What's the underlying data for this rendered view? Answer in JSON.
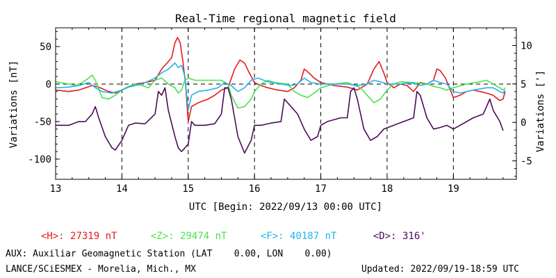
{
  "chart_data": {
    "type": "line",
    "title": "Real-Time regional magnetic field",
    "xlabel": "UTC [Begin: 2022/09/13 00:00 UTC]",
    "ylabel_left": "Variations [nT]",
    "ylabel_right": "Variations [']",
    "x_ticks": [
      "13",
      "14",
      "15",
      "16",
      "17",
      "18",
      "19"
    ],
    "y_left_ticks": [
      -100,
      -50,
      0,
      50
    ],
    "y_right_ticks": [
      -5,
      0,
      5,
      10
    ],
    "xlim": [
      0,
      6.95
    ],
    "ylim_left": [
      -127,
      75
    ],
    "ylim_right": [
      -7.4,
      12.3
    ],
    "day_boundaries": [
      1,
      2,
      3,
      4,
      5,
      6
    ],
    "zero_reference": "dashed line at 0 nT",
    "series": [
      {
        "name": "<H>",
        "color": "#e41a1c",
        "axis": "left",
        "points": [
          [
            0,
            -8
          ],
          [
            0.2,
            -10
          ],
          [
            0.35,
            -8
          ],
          [
            0.45,
            -5
          ],
          [
            0.55,
            -2
          ],
          [
            0.65,
            -4
          ],
          [
            0.8,
            -10
          ],
          [
            0.9,
            -12
          ],
          [
            1.0,
            -8
          ],
          [
            1.1,
            -4
          ],
          [
            1.2,
            0
          ],
          [
            1.35,
            2
          ],
          [
            1.5,
            5
          ],
          [
            1.6,
            20
          ],
          [
            1.7,
            30
          ],
          [
            1.75,
            35
          ],
          [
            1.8,
            55
          ],
          [
            1.84,
            62
          ],
          [
            1.88,
            55
          ],
          [
            1.92,
            30
          ],
          [
            1.96,
            0
          ],
          [
            2.0,
            -50
          ],
          [
            2.05,
            -30
          ],
          [
            2.15,
            -25
          ],
          [
            2.3,
            -20
          ],
          [
            2.4,
            -15
          ],
          [
            2.5,
            -8
          ],
          [
            2.6,
            -5
          ],
          [
            2.7,
            20
          ],
          [
            2.78,
            32
          ],
          [
            2.85,
            28
          ],
          [
            2.92,
            15
          ],
          [
            3.0,
            2
          ],
          [
            3.1,
            -2
          ],
          [
            3.2,
            -5
          ],
          [
            3.35,
            -8
          ],
          [
            3.5,
            -10
          ],
          [
            3.6,
            -5
          ],
          [
            3.7,
            5
          ],
          [
            3.75,
            20
          ],
          [
            3.82,
            15
          ],
          [
            3.9,
            8
          ],
          [
            4.0,
            2
          ],
          [
            4.2,
            -2
          ],
          [
            4.4,
            -4
          ],
          [
            4.55,
            -8
          ],
          [
            4.7,
            0
          ],
          [
            4.8,
            20
          ],
          [
            4.88,
            30
          ],
          [
            4.95,
            15
          ],
          [
            5.0,
            2
          ],
          [
            5.1,
            -5
          ],
          [
            5.2,
            0
          ],
          [
            5.3,
            -2
          ],
          [
            5.4,
            -10
          ],
          [
            5.5,
            2
          ],
          [
            5.6,
            0
          ],
          [
            5.7,
            5
          ],
          [
            5.75,
            20
          ],
          [
            5.8,
            18
          ],
          [
            5.88,
            8
          ],
          [
            6.0,
            -18
          ],
          [
            6.1,
            -15
          ],
          [
            6.2,
            -10
          ],
          [
            6.3,
            -8
          ],
          [
            6.4,
            -10
          ],
          [
            6.5,
            -12
          ],
          [
            6.6,
            -15
          ],
          [
            6.7,
            -22
          ],
          [
            6.75,
            -20
          ],
          [
            6.78,
            -10
          ]
        ]
      },
      {
        "name": "<Z>",
        "color": "#4be24b",
        "axis": "left",
        "points": [
          [
            0,
            3
          ],
          [
            0.2,
            0
          ],
          [
            0.3,
            -2
          ],
          [
            0.4,
            2
          ],
          [
            0.5,
            8
          ],
          [
            0.55,
            12
          ],
          [
            0.6,
            5
          ],
          [
            0.7,
            -18
          ],
          [
            0.8,
            -20
          ],
          [
            0.9,
            -15
          ],
          [
            1.0,
            -8
          ],
          [
            1.1,
            -3
          ],
          [
            1.2,
            0
          ],
          [
            1.3,
            -2
          ],
          [
            1.4,
            -5
          ],
          [
            1.5,
            5
          ],
          [
            1.6,
            8
          ],
          [
            1.7,
            0
          ],
          [
            1.8,
            -5
          ],
          [
            1.85,
            -12
          ],
          [
            1.9,
            -8
          ],
          [
            1.95,
            5
          ],
          [
            2.0,
            8
          ],
          [
            2.1,
            5
          ],
          [
            2.3,
            5
          ],
          [
            2.5,
            5
          ],
          [
            2.6,
            0
          ],
          [
            2.65,
            -15
          ],
          [
            2.75,
            -32
          ],
          [
            2.85,
            -30
          ],
          [
            2.95,
            -20
          ],
          [
            3.0,
            -10
          ],
          [
            3.1,
            0
          ],
          [
            3.2,
            5
          ],
          [
            3.3,
            2
          ],
          [
            3.5,
            0
          ],
          [
            3.6,
            -10
          ],
          [
            3.7,
            -15
          ],
          [
            3.8,
            -18
          ],
          [
            3.9,
            -12
          ],
          [
            4.0,
            -5
          ],
          [
            4.2,
            0
          ],
          [
            4.4,
            2
          ],
          [
            4.6,
            -5
          ],
          [
            4.7,
            -15
          ],
          [
            4.8,
            -25
          ],
          [
            4.9,
            -20
          ],
          [
            5.0,
            -8
          ],
          [
            5.1,
            0
          ],
          [
            5.2,
            3
          ],
          [
            5.4,
            2
          ],
          [
            5.6,
            0
          ],
          [
            5.7,
            -3
          ],
          [
            5.8,
            -5
          ],
          [
            5.9,
            -8
          ],
          [
            6.0,
            -5
          ],
          [
            6.2,
            0
          ],
          [
            6.4,
            3
          ],
          [
            6.5,
            5
          ],
          [
            6.6,
            0
          ],
          [
            6.7,
            -5
          ],
          [
            6.75,
            -8
          ],
          [
            6.78,
            -5
          ]
        ]
      },
      {
        "name": "<F>",
        "color": "#22b4e6",
        "axis": "left",
        "points": [
          [
            0,
            -5
          ],
          [
            0.2,
            -4
          ],
          [
            0.35,
            -2
          ],
          [
            0.5,
            2
          ],
          [
            0.6,
            -5
          ],
          [
            0.7,
            -10
          ],
          [
            0.85,
            -12
          ],
          [
            1.0,
            -8
          ],
          [
            1.1,
            -4
          ],
          [
            1.2,
            -2
          ],
          [
            1.35,
            2
          ],
          [
            1.5,
            8
          ],
          [
            1.6,
            15
          ],
          [
            1.7,
            20
          ],
          [
            1.8,
            28
          ],
          [
            1.85,
            22
          ],
          [
            1.9,
            25
          ],
          [
            1.95,
            10
          ],
          [
            2.0,
            -35
          ],
          [
            2.05,
            -15
          ],
          [
            2.15,
            -10
          ],
          [
            2.3,
            -8
          ],
          [
            2.45,
            -5
          ],
          [
            2.55,
            2
          ],
          [
            2.65,
            -2
          ],
          [
            2.75,
            -10
          ],
          [
            2.85,
            -5
          ],
          [
            2.95,
            5
          ],
          [
            3.05,
            8
          ],
          [
            3.2,
            3
          ],
          [
            3.4,
            0
          ],
          [
            3.55,
            -2
          ],
          [
            3.65,
            0
          ],
          [
            3.75,
            8
          ],
          [
            3.85,
            2
          ],
          [
            4.0,
            0
          ],
          [
            4.2,
            0
          ],
          [
            4.4,
            0
          ],
          [
            4.55,
            -2
          ],
          [
            4.7,
            0
          ],
          [
            4.8,
            5
          ],
          [
            4.9,
            3
          ],
          [
            5.0,
            0
          ],
          [
            5.2,
            0
          ],
          [
            5.35,
            2
          ],
          [
            5.5,
            -2
          ],
          [
            5.6,
            0
          ],
          [
            5.7,
            5
          ],
          [
            5.8,
            2
          ],
          [
            5.9,
            0
          ],
          [
            6.0,
            -10
          ],
          [
            6.1,
            -12
          ],
          [
            6.3,
            -8
          ],
          [
            6.5,
            -5
          ],
          [
            6.6,
            -5
          ],
          [
            6.7,
            -10
          ],
          [
            6.75,
            -12
          ],
          [
            6.78,
            -8
          ]
        ]
      },
      {
        "name": "<D>",
        "color": "#4b0a5a",
        "axis": "left",
        "points": [
          [
            0,
            -55
          ],
          [
            0.2,
            -55
          ],
          [
            0.35,
            -50
          ],
          [
            0.45,
            -50
          ],
          [
            0.55,
            -40
          ],
          [
            0.6,
            -30
          ],
          [
            0.65,
            -45
          ],
          [
            0.75,
            -70
          ],
          [
            0.85,
            -85
          ],
          [
            0.9,
            -88
          ],
          [
            1.0,
            -75
          ],
          [
            1.1,
            -55
          ],
          [
            1.2,
            -52
          ],
          [
            1.35,
            -53
          ],
          [
            1.5,
            -40
          ],
          [
            1.55,
            -10
          ],
          [
            1.6,
            -15
          ],
          [
            1.65,
            -5
          ],
          [
            1.7,
            -35
          ],
          [
            1.8,
            -70
          ],
          [
            1.85,
            -85
          ],
          [
            1.9,
            -90
          ],
          [
            2.0,
            -80
          ],
          [
            2.05,
            -50
          ],
          [
            2.1,
            -55
          ],
          [
            2.25,
            -55
          ],
          [
            2.4,
            -53
          ],
          [
            2.5,
            -40
          ],
          [
            2.55,
            -5
          ],
          [
            2.6,
            -5
          ],
          [
            2.65,
            -20
          ],
          [
            2.75,
            -70
          ],
          [
            2.85,
            -92
          ],
          [
            2.95,
            -75
          ],
          [
            3.0,
            -55
          ],
          [
            3.1,
            -55
          ],
          [
            3.25,
            -52
          ],
          [
            3.4,
            -50
          ],
          [
            3.45,
            -20
          ],
          [
            3.5,
            -25
          ],
          [
            3.55,
            -30
          ],
          [
            3.65,
            -40
          ],
          [
            3.75,
            -60
          ],
          [
            3.85,
            -75
          ],
          [
            3.95,
            -70
          ],
          [
            4.0,
            -55
          ],
          [
            4.1,
            -50
          ],
          [
            4.3,
            -45
          ],
          [
            4.4,
            -45
          ],
          [
            4.45,
            -10
          ],
          [
            4.5,
            -5
          ],
          [
            4.55,
            -20
          ],
          [
            4.65,
            -60
          ],
          [
            4.75,
            -75
          ],
          [
            4.85,
            -70
          ],
          [
            4.95,
            -60
          ],
          [
            5.1,
            -55
          ],
          [
            5.25,
            -50
          ],
          [
            5.4,
            -45
          ],
          [
            5.45,
            -10
          ],
          [
            5.5,
            -15
          ],
          [
            5.6,
            -45
          ],
          [
            5.7,
            -60
          ],
          [
            5.8,
            -58
          ],
          [
            5.9,
            -55
          ],
          [
            6.0,
            -60
          ],
          [
            6.1,
            -55
          ],
          [
            6.3,
            -45
          ],
          [
            6.45,
            -40
          ],
          [
            6.5,
            -30
          ],
          [
            6.55,
            -20
          ],
          [
            6.6,
            -35
          ],
          [
            6.7,
            -50
          ],
          [
            6.75,
            -62
          ]
        ]
      }
    ]
  },
  "legend": [
    {
      "label": "<H>",
      "value": "27319 nT",
      "color": "#e41a1c"
    },
    {
      "label": "<Z>",
      "value": "29474 nT",
      "color": "#4be24b"
    },
    {
      "label": "<F>",
      "value": "40187 nT",
      "color": "#22b4e6"
    },
    {
      "label": "<D>",
      "value": "316'",
      "color": "#4b0a5a"
    }
  ],
  "footer": {
    "aux_line": "AUX: Auxiliar Geomagnetic Station (LAT    0.00, LON    0.00)",
    "institution": "LANCE/SCiESMEX - Morelia, Mich., MX",
    "updated": "Updated: 2022/09/19-18:59 UTC"
  }
}
